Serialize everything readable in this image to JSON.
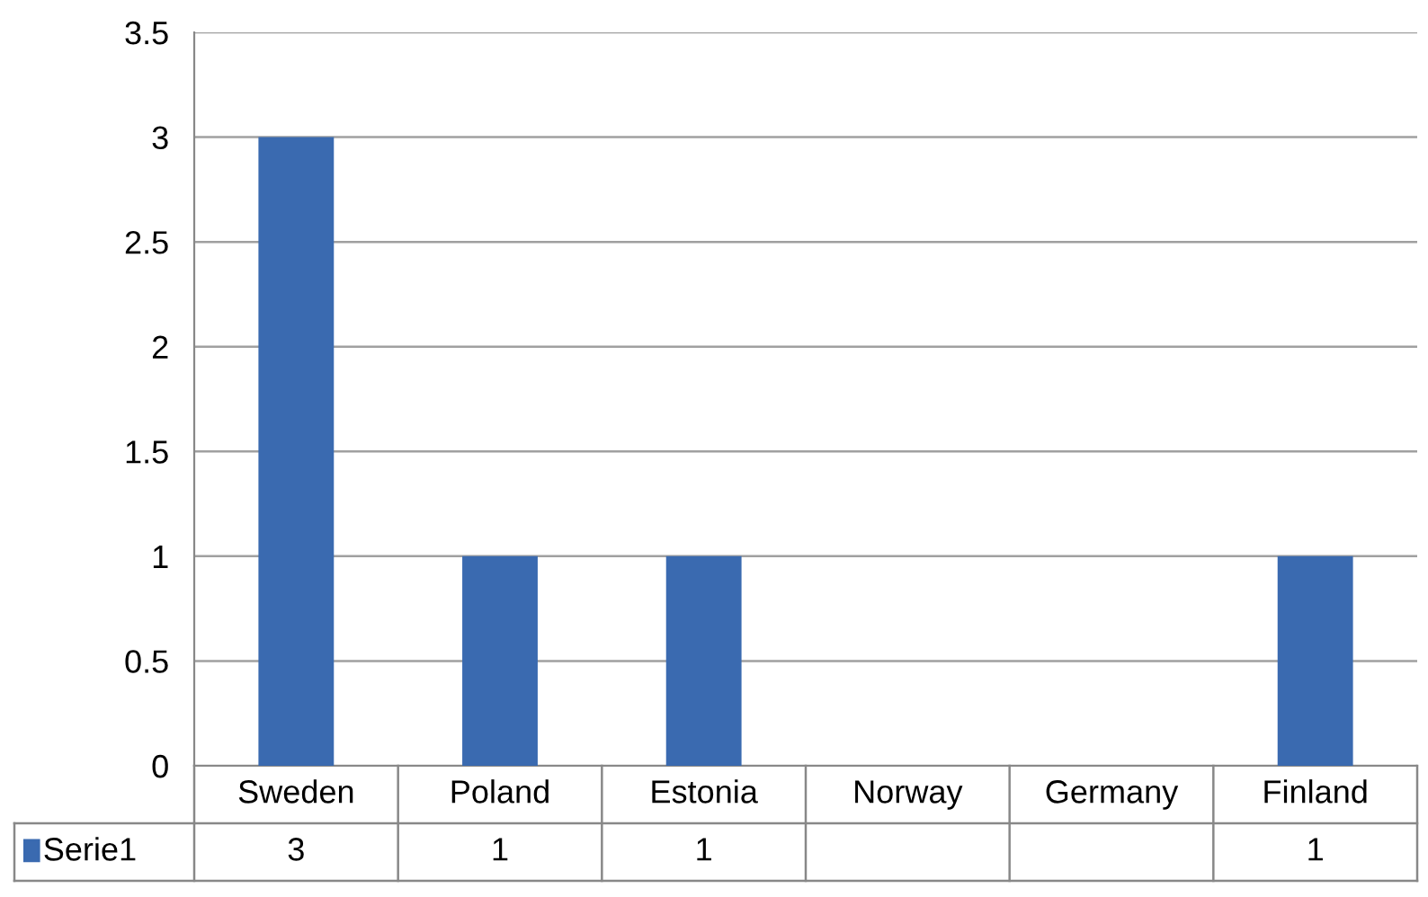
{
  "chart_data": {
    "type": "bar",
    "categories": [
      "Sweden",
      "Poland",
      "Estonia",
      "Norway",
      "Germany",
      "Finland"
    ],
    "series": [
      {
        "name": "Serie1",
        "color": "#3a6ab0",
        "values": [
          3,
          1,
          1,
          null,
          null,
          1
        ]
      }
    ],
    "ylim": [
      0,
      3.5
    ],
    "yticks": [
      0,
      0.5,
      1,
      1.5,
      2,
      2.5,
      3,
      3.5
    ],
    "grid": "y",
    "data_labels": true
  }
}
